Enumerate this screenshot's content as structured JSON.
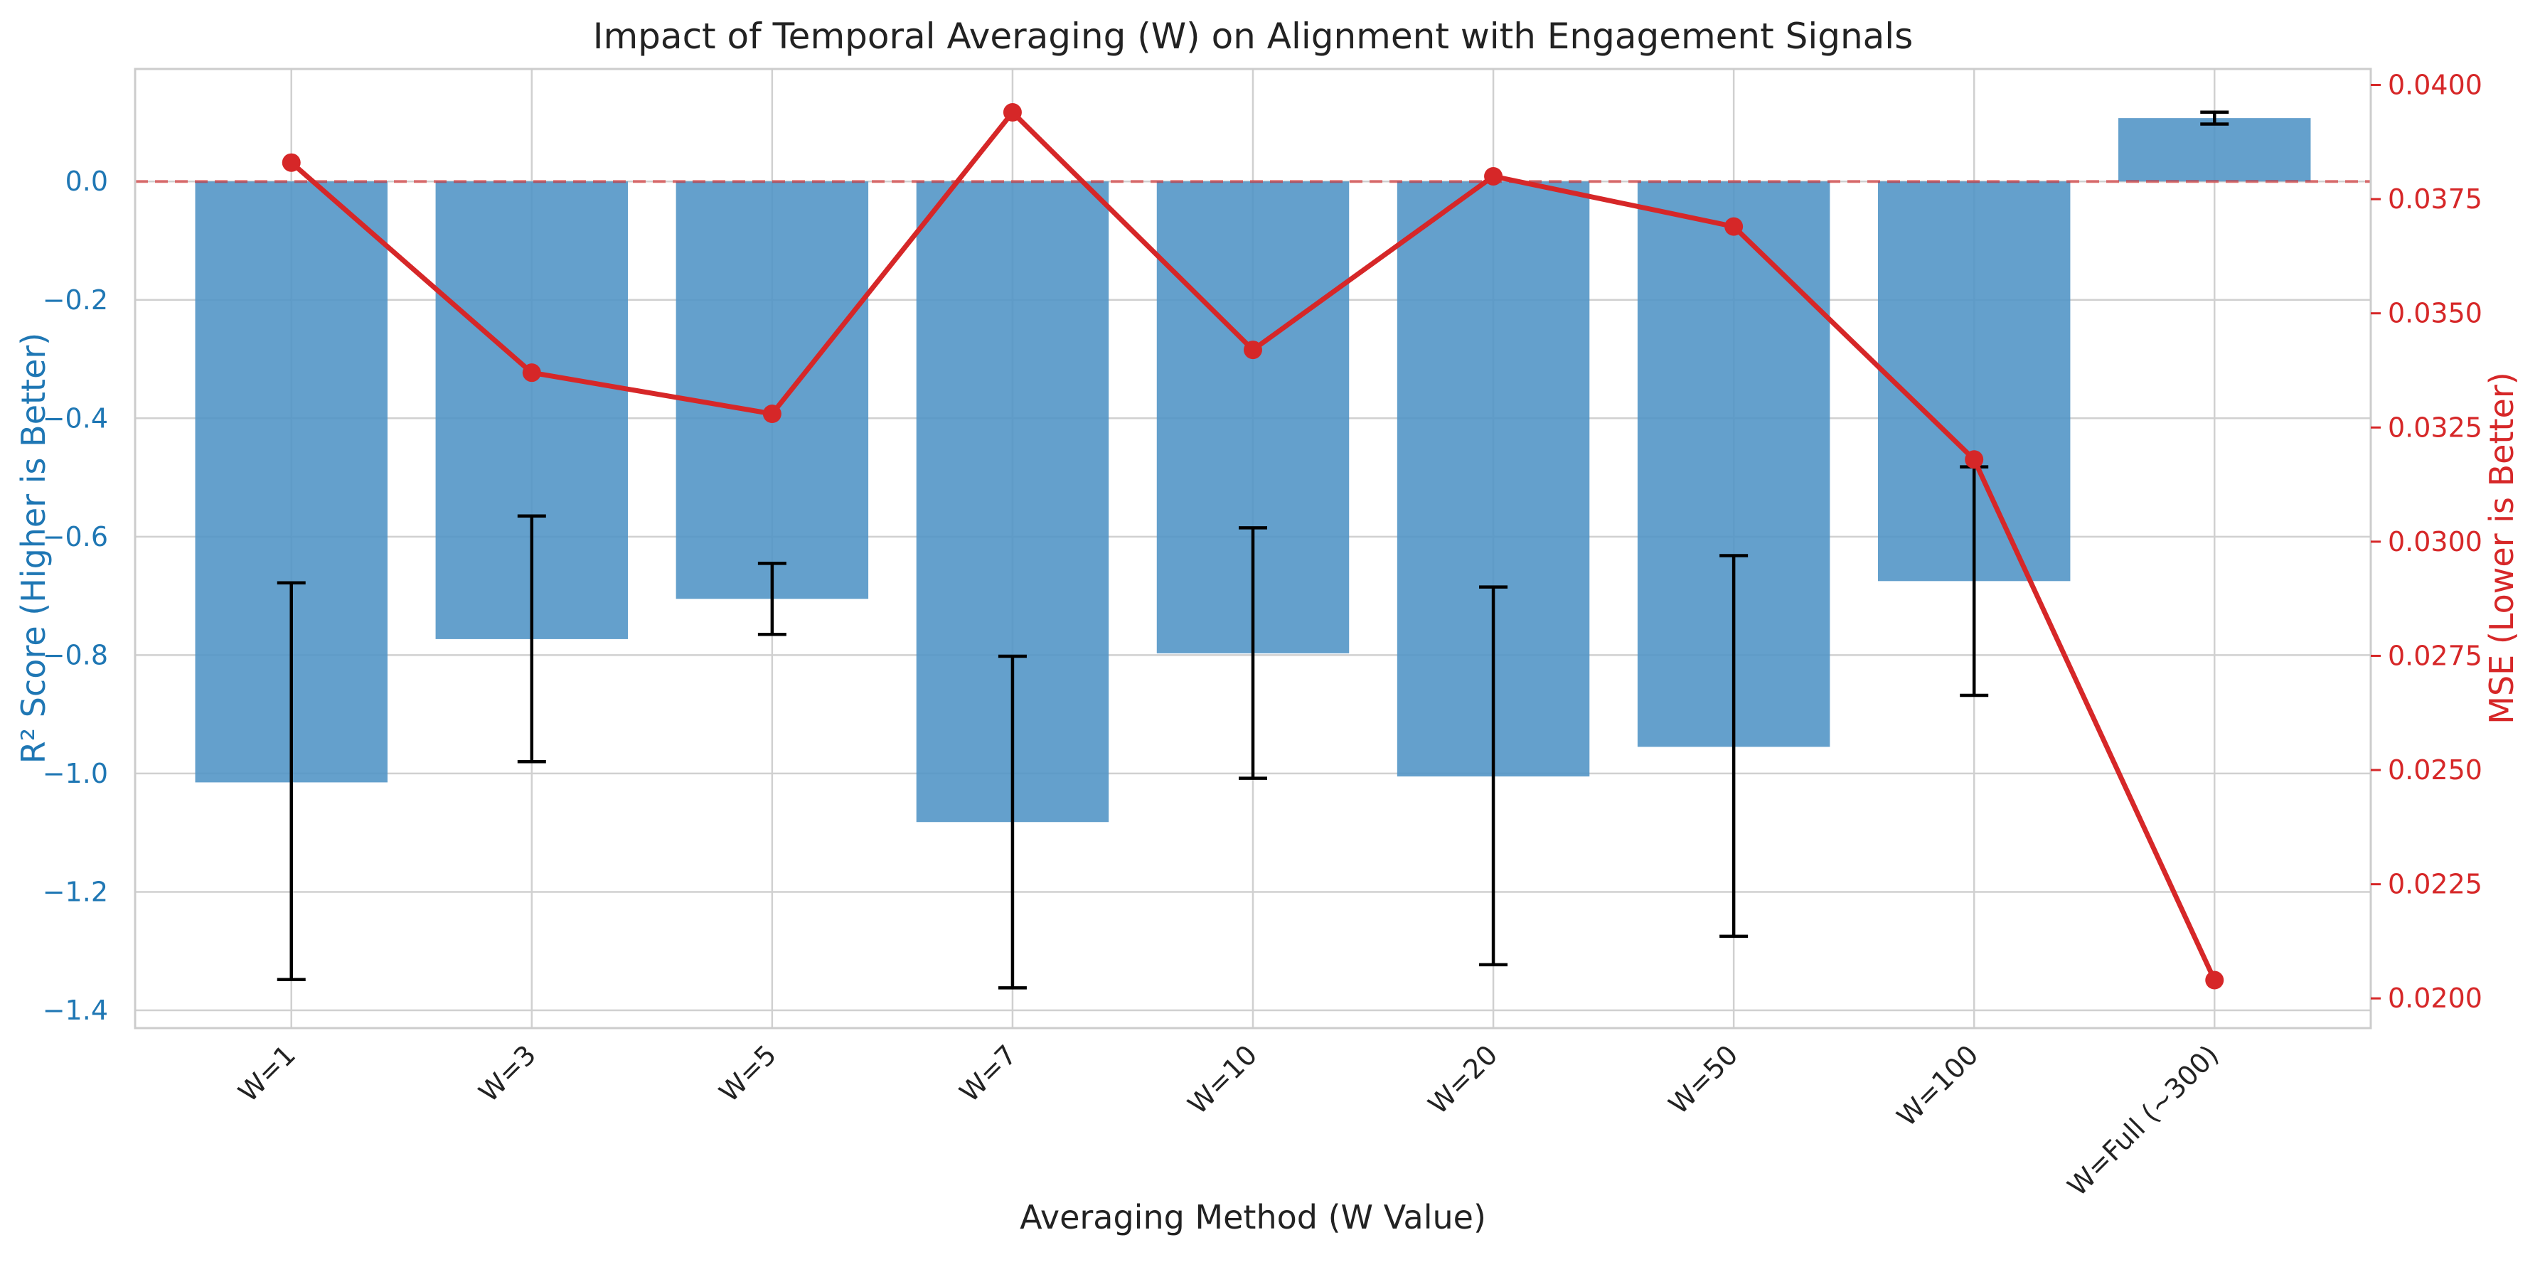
{
  "chart_data": {
    "type": "bar",
    "title": "Impact of Temporal Averaging (W) on Alignment with Engagement Signals",
    "xlabel": "Averaging Method (W Value)",
    "ylabel": "R² Score (Higher is Better)",
    "y2label": "MSE (Lower is Better)",
    "categories": [
      "W=1",
      "W=3",
      "W=5",
      "W=7",
      "W=10",
      "W=20",
      "W=50",
      "W=100",
      "W=Full (~300)"
    ],
    "ylim": [
      -1.43,
      0.19
    ],
    "y2lim": [
      0.01935,
      0.04035
    ],
    "yticks": [
      0.0,
      -0.2,
      -0.4,
      -0.6,
      -0.8,
      -1.0,
      -1.2,
      -1.4
    ],
    "ytick_labels": [
      "0.0",
      "−0.2",
      "−0.4",
      "−0.6",
      "−0.8",
      "−1.0",
      "−1.2",
      "−1.4"
    ],
    "y2ticks": [
      0.04,
      0.0375,
      0.035,
      0.0325,
      0.03,
      0.0275,
      0.025,
      0.0225,
      0.02
    ],
    "y2tick_labels": [
      "0.0400",
      "0.0375",
      "0.0350",
      "0.0325",
      "0.0300",
      "0.0275",
      "0.0250",
      "0.0225",
      "0.0200"
    ],
    "grid": true,
    "reference_line": {
      "y": 0,
      "style": "dashed"
    },
    "series": [
      {
        "type": "bar",
        "axis": "left",
        "values": [
          -1.015,
          -0.773,
          -0.705,
          -1.082,
          -0.797,
          -1.005,
          -0.955,
          -0.675,
          0.107
        ],
        "error": [
          [
            -1.348,
            -0.678
          ],
          [
            -0.98,
            -0.565
          ],
          [
            -0.765,
            -0.645
          ],
          [
            -1.362,
            -0.802
          ],
          [
            -1.008,
            -0.585
          ],
          [
            -1.323,
            -0.685
          ],
          [
            -1.275,
            -0.632
          ],
          [
            -0.868,
            -0.482
          ],
          [
            0.097,
            0.117
          ]
        ]
      },
      {
        "type": "line",
        "axis": "right",
        "values": [
          0.0383,
          0.0337,
          0.0328,
          0.0394,
          0.0342,
          0.038,
          0.0369,
          0.0318,
          0.0204
        ]
      }
    ],
    "colors": {
      "bar": "#4f93c5",
      "line": "#d62728",
      "left_axis": "#1f77b4",
      "right_axis": "#d62728",
      "error": "#000000",
      "grid": "#d0d0d0"
    }
  }
}
